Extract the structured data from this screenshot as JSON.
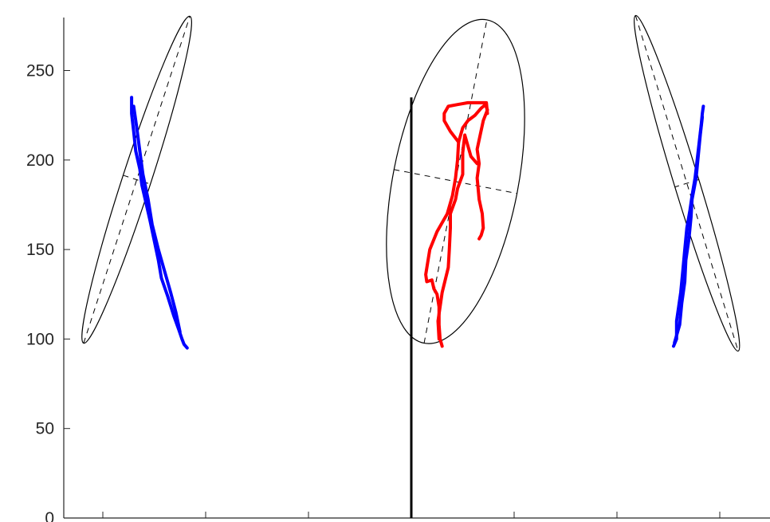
{
  "chart_data": {
    "type": "line",
    "title": "",
    "xlabel": "",
    "ylabel": "",
    "ylim": [
      0,
      278
    ],
    "yticks": [
      0,
      50,
      100,
      150,
      200,
      250
    ],
    "xlim": [
      -300,
      300
    ],
    "xticks": [
      -300,
      -200,
      -100,
      0,
      100,
      200,
      300
    ],
    "xtick_labels_visible": false,
    "grid": false,
    "legend": "none",
    "colors": {
      "left": "#0000ff",
      "center": "#ff0000",
      "right": "#0000ff",
      "ellipse": "#000000",
      "axis": "#262626"
    },
    "center_line": {
      "x": 0,
      "y": [
        0,
        235
      ]
    },
    "series": [
      {
        "id": "left",
        "color": "#0000ff",
        "points": [
          [
            -272,
            235
          ],
          [
            -272,
            226
          ],
          [
            -270,
            216
          ],
          [
            -268,
            205
          ],
          [
            -264,
            195
          ],
          [
            -262,
            186
          ],
          [
            -258,
            176
          ],
          [
            -254,
            166
          ],
          [
            -250,
            155
          ],
          [
            -246,
            144
          ],
          [
            -243,
            134
          ],
          [
            -237,
            124
          ],
          [
            -231,
            113
          ],
          [
            -226,
            105
          ],
          [
            -223,
            100
          ],
          [
            -221,
            97
          ],
          [
            -218,
            95
          ]
        ],
        "points_b": [
          [
            -270,
            230
          ],
          [
            -267,
            218
          ],
          [
            -264,
            205
          ],
          [
            -261,
            192
          ],
          [
            -256,
            178
          ],
          [
            -252,
            164
          ],
          [
            -246,
            150
          ],
          [
            -240,
            138
          ],
          [
            -234,
            126
          ],
          [
            -229,
            115
          ],
          [
            -225,
            104
          ]
        ]
      },
      {
        "id": "center",
        "color": "#ff0000",
        "points": [
          [
            30,
            96
          ],
          [
            28,
            100
          ],
          [
            27,
            108
          ],
          [
            27,
            118
          ],
          [
            25,
            125
          ],
          [
            22,
            128
          ],
          [
            20,
            133
          ],
          [
            15,
            132
          ],
          [
            14,
            136
          ],
          [
            18,
            150
          ],
          [
            25,
            160
          ],
          [
            35,
            170
          ],
          [
            40,
            180
          ],
          [
            43,
            190
          ],
          [
            45,
            200
          ],
          [
            46,
            210
          ],
          [
            50,
            218
          ],
          [
            55,
            222
          ],
          [
            62,
            225
          ],
          [
            68,
            229
          ],
          [
            72,
            231
          ],
          [
            74,
            228
          ],
          [
            70,
            222
          ],
          [
            67,
            214
          ],
          [
            64,
            206
          ],
          [
            66,
            198
          ],
          [
            64,
            190
          ],
          [
            66,
            178
          ],
          [
            69,
            170
          ],
          [
            70,
            162
          ],
          [
            68,
            158
          ],
          [
            66,
            156
          ]
        ],
        "points_b": [
          [
            46,
            210
          ],
          [
            38,
            216
          ],
          [
            32,
            222
          ],
          [
            32,
            226
          ],
          [
            36,
            230
          ],
          [
            45,
            231
          ],
          [
            55,
            232
          ],
          [
            65,
            232
          ],
          [
            73,
            232
          ],
          [
            74,
            226
          ]
        ],
        "points_c": [
          [
            64,
            198
          ],
          [
            58,
            202
          ],
          [
            52,
            214
          ],
          [
            50,
            204
          ],
          [
            50,
            192
          ],
          [
            45,
            184
          ],
          [
            43,
            178
          ],
          [
            38,
            170
          ],
          [
            38,
            162
          ],
          [
            37,
            150
          ],
          [
            36,
            140
          ],
          [
            30,
            126
          ],
          [
            26,
            110
          ],
          [
            27,
            100
          ]
        ]
      },
      {
        "id": "right",
        "color": "#0000ff",
        "points": [
          [
            255,
            96
          ],
          [
            258,
            100
          ],
          [
            258,
            110
          ],
          [
            260,
            118
          ],
          [
            262,
            126
          ],
          [
            264,
            138
          ],
          [
            266,
            150
          ],
          [
            268,
            162
          ],
          [
            271,
            172
          ],
          [
            273,
            180
          ],
          [
            276,
            190
          ],
          [
            278,
            200
          ],
          [
            280,
            210
          ],
          [
            282,
            220
          ],
          [
            283,
            226
          ],
          [
            284,
            230
          ]
        ],
        "points_b": [
          [
            256,
            98
          ],
          [
            261,
            108
          ],
          [
            263,
            120
          ],
          [
            266,
            132
          ],
          [
            267,
            144
          ],
          [
            270,
            156
          ],
          [
            272,
            168
          ],
          [
            273,
            178
          ],
          [
            277,
            190
          ],
          [
            279,
            202
          ],
          [
            281,
            214
          ],
          [
            283,
            224
          ]
        ]
      }
    ],
    "ellipses": [
      {
        "id": "left-ellipse",
        "cx": -267,
        "cy": 189,
        "rx": 96,
        "ry": 8,
        "angle_deg": 72
      },
      {
        "id": "center-ellipse",
        "cx": 43,
        "cy": 188,
        "rx": 92,
        "ry": 35,
        "angle_deg": 79
      },
      {
        "id": "right-ellipse",
        "cx": 268,
        "cy": 187,
        "rx": 98,
        "ry": 7,
        "angle_deg": -73
      }
    ]
  }
}
